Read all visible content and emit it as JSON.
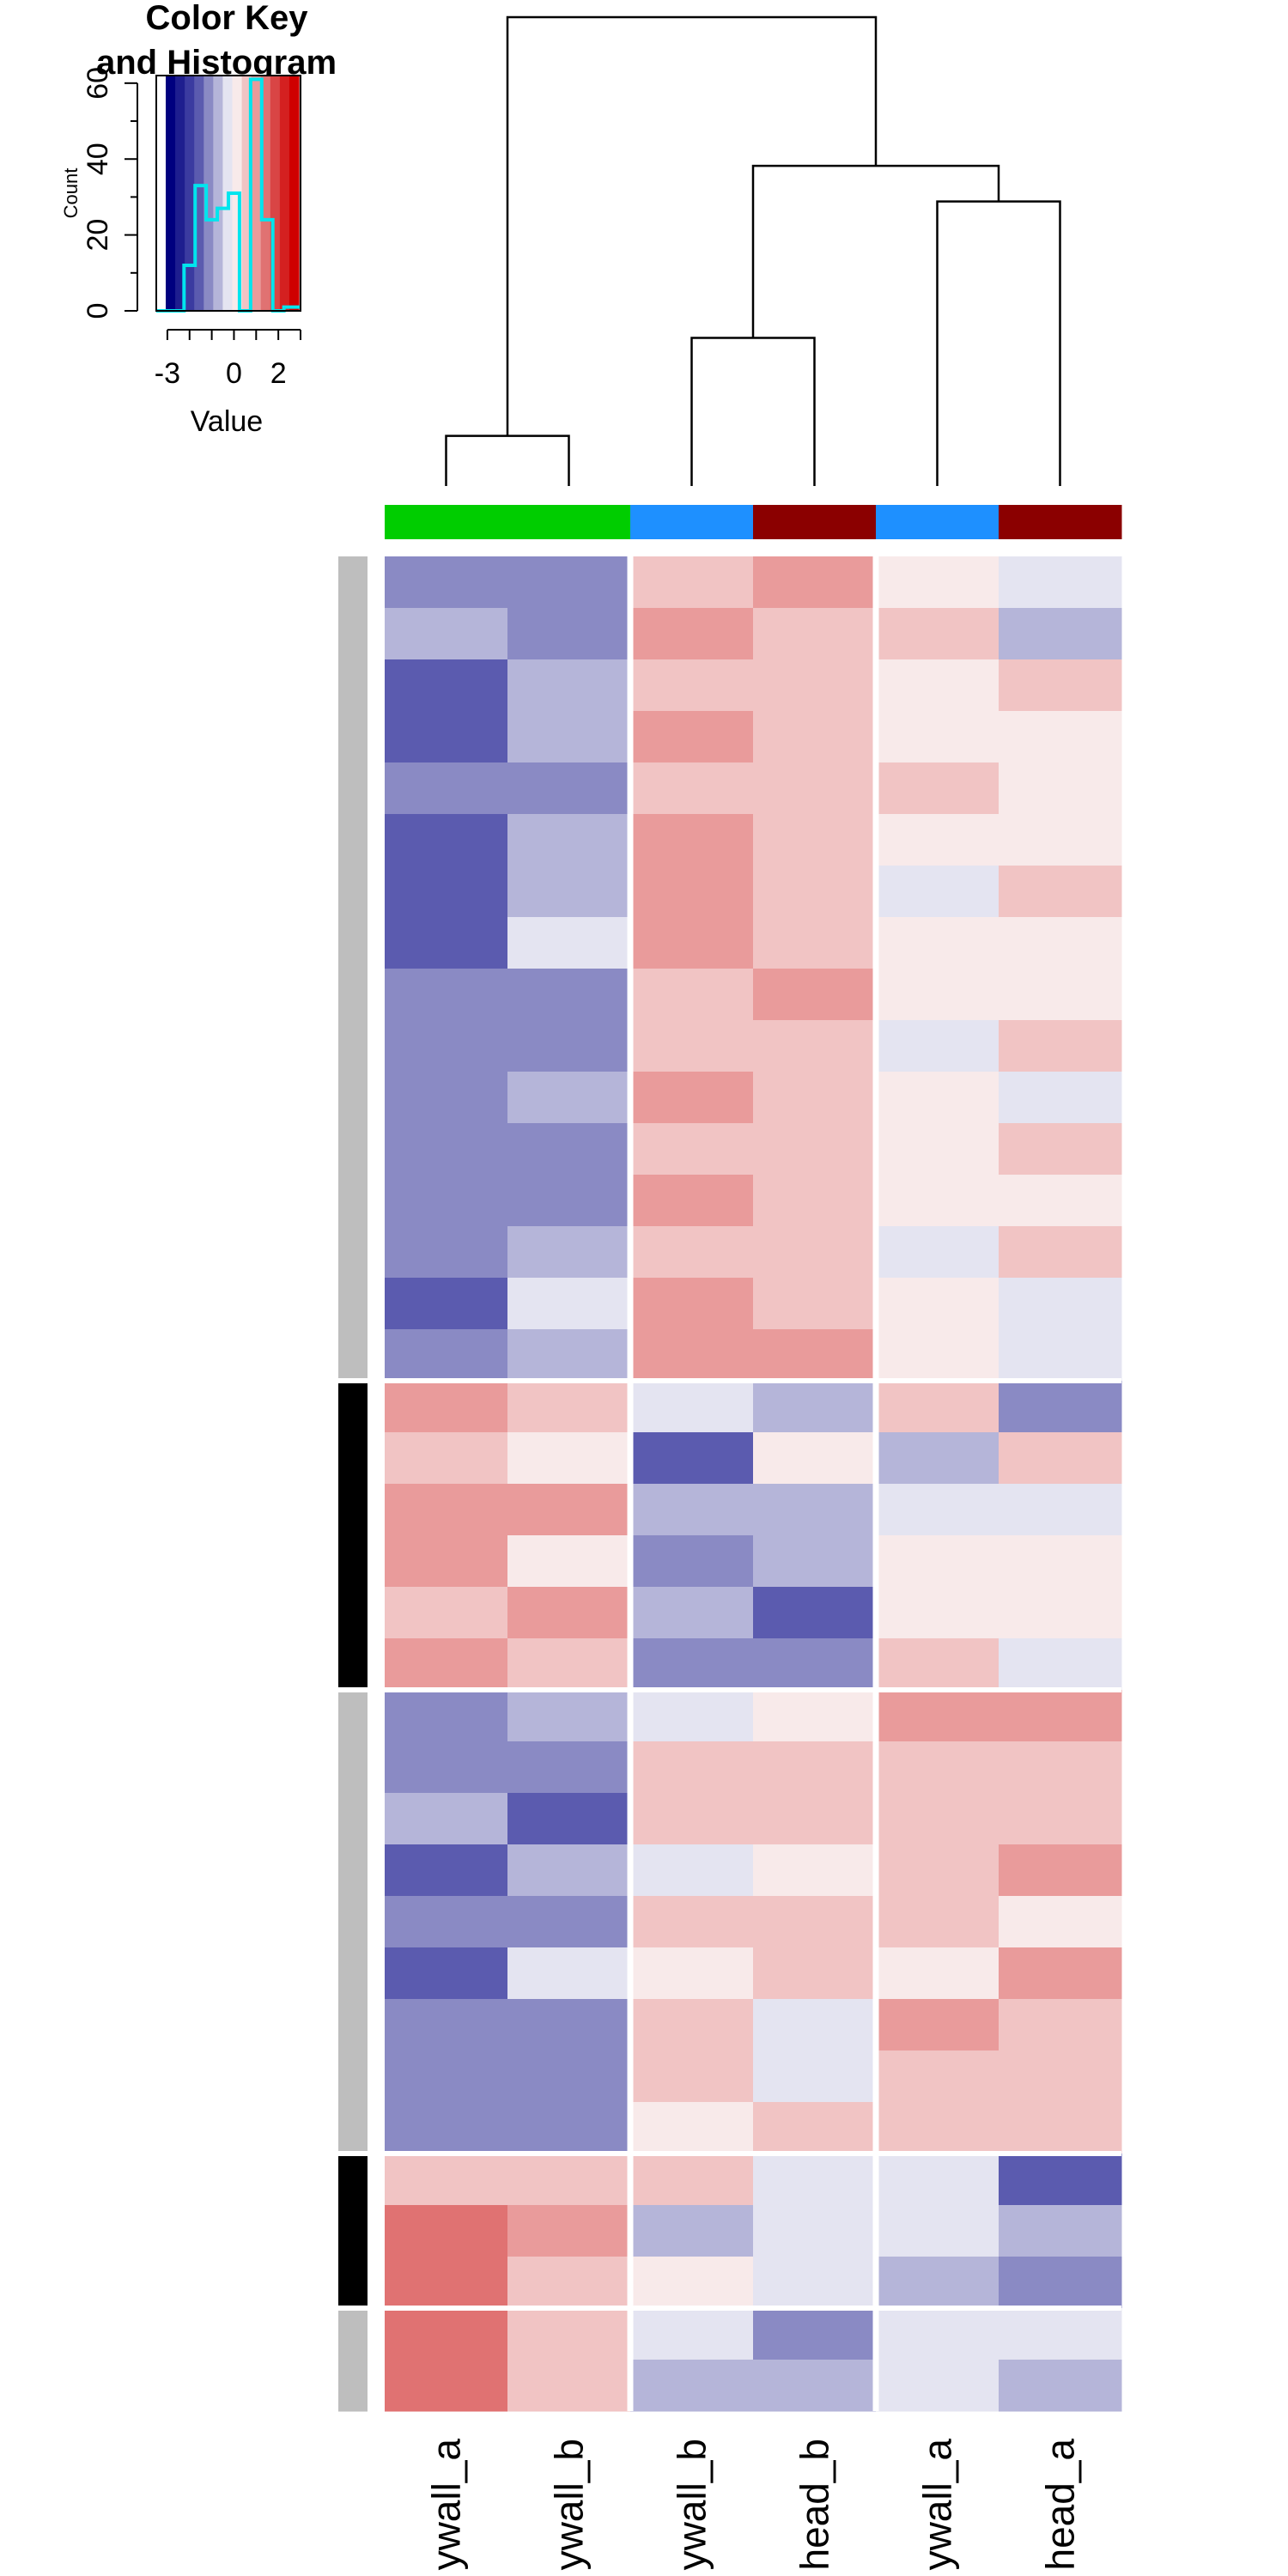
{
  "chart_data": {
    "type": "heatmap",
    "color_key": {
      "title_line1": "Color Key",
      "title_line2": "and Histogram",
      "xlabel": "Value",
      "ylabel": "Count",
      "x_ticks": [
        "-3",
        "0",
        "2"
      ],
      "y_ticks": [
        "0",
        "20",
        "40",
        "60"
      ],
      "xlim": [
        -3.5,
        3
      ],
      "ylim": [
        0,
        62
      ],
      "colors": [
        "#00007f",
        "#1e1e8f",
        "#3b3ba0",
        "#5b5baf",
        "#8a8ac4",
        "#b5b5d9",
        "#e4e4f1",
        "#f8eaea",
        "#f1c4c4",
        "#e99b9b",
        "#e07272",
        "#d94545",
        "#d42020",
        "#cf0000"
      ],
      "histogram_color": "#00e5ee",
      "histogram_x": [
        -3.5,
        -2.75,
        -2.25,
        -1.75,
        -1.25,
        -0.75,
        -0.25,
        0.25,
        0.75,
        1.25,
        1.75,
        2.25,
        3
      ],
      "histogram_y": [
        0,
        0,
        12,
        33,
        24,
        27,
        31,
        0,
        61,
        24,
        0,
        1,
        0
      ]
    },
    "columns": [
      "mature_bodywall_a",
      "mature_bodywall_b",
      "immature_bodywall_b",
      "immature_head_b",
      "immature_bodywall_a",
      "immature_head_a"
    ],
    "column_labels_visible": [
      "ywall_a",
      "ywall_b",
      "ywall_b",
      "head_b",
      "ywall_a",
      "head_a"
    ],
    "column_colors": [
      "#00cd00",
      "#00cd00",
      "#1e90ff",
      "#8b0000",
      "#1e90ff",
      "#8b0000"
    ],
    "column_order": [
      0,
      1,
      2,
      3,
      4,
      5
    ],
    "column_splits_after": [
      1,
      3
    ],
    "row_splits_after": [
      15,
      21,
      30,
      33
    ],
    "row_side_colors": [
      "#bebebe",
      "#bebebe",
      "#bebebe",
      "#bebebe",
      "#bebebe",
      "#bebebe",
      "#bebebe",
      "#bebebe",
      "#bebebe",
      "#bebebe",
      "#bebebe",
      "#bebebe",
      "#bebebe",
      "#bebebe",
      "#bebebe",
      "#bebebe",
      "#000000",
      "#000000",
      "#000000",
      "#000000",
      "#000000",
      "#000000",
      "#bebebe",
      "#bebebe",
      "#bebebe",
      "#bebebe",
      "#bebebe",
      "#bebebe",
      "#bebebe",
      "#bebebe",
      "#bebebe",
      "#000000",
      "#000000",
      "#000000",
      "#bebebe",
      "#bebebe"
    ],
    "level_colors": {
      "-3": "#5b5baf",
      "-2": "#8a8ac4",
      "-1": "#b5b5d9",
      "-0.5": "#e4e4f1",
      "0.5": "#f8eaea",
      "1": "#f1c4c4",
      "2": "#e99b9b",
      "3": "#e07272"
    },
    "values": [
      [
        -2,
        -2,
        1,
        2,
        0.5,
        -0.5
      ],
      [
        -1,
        -2,
        2,
        1,
        1,
        -1
      ],
      [
        -3,
        -1,
        1,
        1,
        0.5,
        1
      ],
      [
        -3,
        -1,
        2,
        1,
        0.5,
        0.5
      ],
      [
        -2,
        -2,
        1,
        1,
        1,
        0.5
      ],
      [
        -3,
        -1,
        2,
        1,
        0.5,
        0.5
      ],
      [
        -3,
        -1,
        2,
        1,
        -0.5,
        1
      ],
      [
        -3,
        -0.5,
        2,
        1,
        0.5,
        0.5
      ],
      [
        -2,
        -2,
        1,
        2,
        0.5,
        0.5
      ],
      [
        -2,
        -2,
        1,
        1,
        -0.5,
        1
      ],
      [
        -2,
        -1,
        2,
        1,
        0.5,
        -0.5
      ],
      [
        -2,
        -2,
        1,
        1,
        0.5,
        1
      ],
      [
        -2,
        -2,
        2,
        1,
        0.5,
        0.5
      ],
      [
        -2,
        -1,
        1,
        1,
        -0.5,
        1
      ],
      [
        -3,
        -0.5,
        2,
        1,
        0.5,
        -0.5
      ],
      [
        -2,
        -1,
        2,
        2,
        0.5,
        -0.5
      ],
      [
        2,
        1,
        -0.5,
        -1,
        1,
        -2
      ],
      [
        1,
        0.5,
        -3,
        0.5,
        -1,
        1
      ],
      [
        2,
        2,
        -1,
        -1,
        -0.5,
        -0.5
      ],
      [
        2,
        0.5,
        -2,
        -1,
        0.5,
        0.5
      ],
      [
        1,
        2,
        -1,
        -3,
        0.5,
        0.5
      ],
      [
        2,
        1,
        -2,
        -2,
        1,
        -0.5
      ],
      [
        -2,
        -1,
        -0.5,
        0.5,
        2,
        2
      ],
      [
        -2,
        -2,
        1,
        1,
        1,
        1
      ],
      [
        -1,
        -3,
        1,
        1,
        1,
        1
      ],
      [
        -3,
        -1,
        -0.5,
        0.5,
        1,
        2
      ],
      [
        -2,
        -2,
        1,
        1,
        1,
        0.5
      ],
      [
        -3,
        -0.5,
        0.5,
        1,
        0.5,
        2
      ],
      [
        -2,
        -2,
        1,
        -0.5,
        2,
        1
      ],
      [
        -2,
        -2,
        1,
        -0.5,
        1,
        1
      ],
      [
        -2,
        -2,
        0.5,
        1,
        1,
        1
      ],
      [
        1,
        1,
        1,
        -0.5,
        -0.5,
        -3
      ],
      [
        3,
        2,
        -1,
        -0.5,
        -0.5,
        -1
      ],
      [
        3,
        1,
        0.5,
        -0.5,
        -1,
        -2
      ],
      [
        3,
        1,
        -0.5,
        -2,
        -0.5,
        -0.5
      ],
      [
        3,
        1,
        -1,
        -1,
        -0.5,
        -1
      ]
    ],
    "dendrogram": {
      "merges": [
        {
          "left": [
            0
          ],
          "right": [
            1
          ],
          "height": 10.7
        },
        {
          "left": [
            2
          ],
          "right": [
            3
          ],
          "height": 31.6
        },
        {
          "left": [
            4
          ],
          "right": [
            5
          ],
          "height": 60.7
        },
        {
          "left": [
            2,
            3
          ],
          "right": [
            4,
            5
          ],
          "height": 68.3
        },
        {
          "left": [
            0,
            1
          ],
          "right": [
            2,
            3,
            4,
            5
          ],
          "height": 100
        }
      ]
    }
  }
}
